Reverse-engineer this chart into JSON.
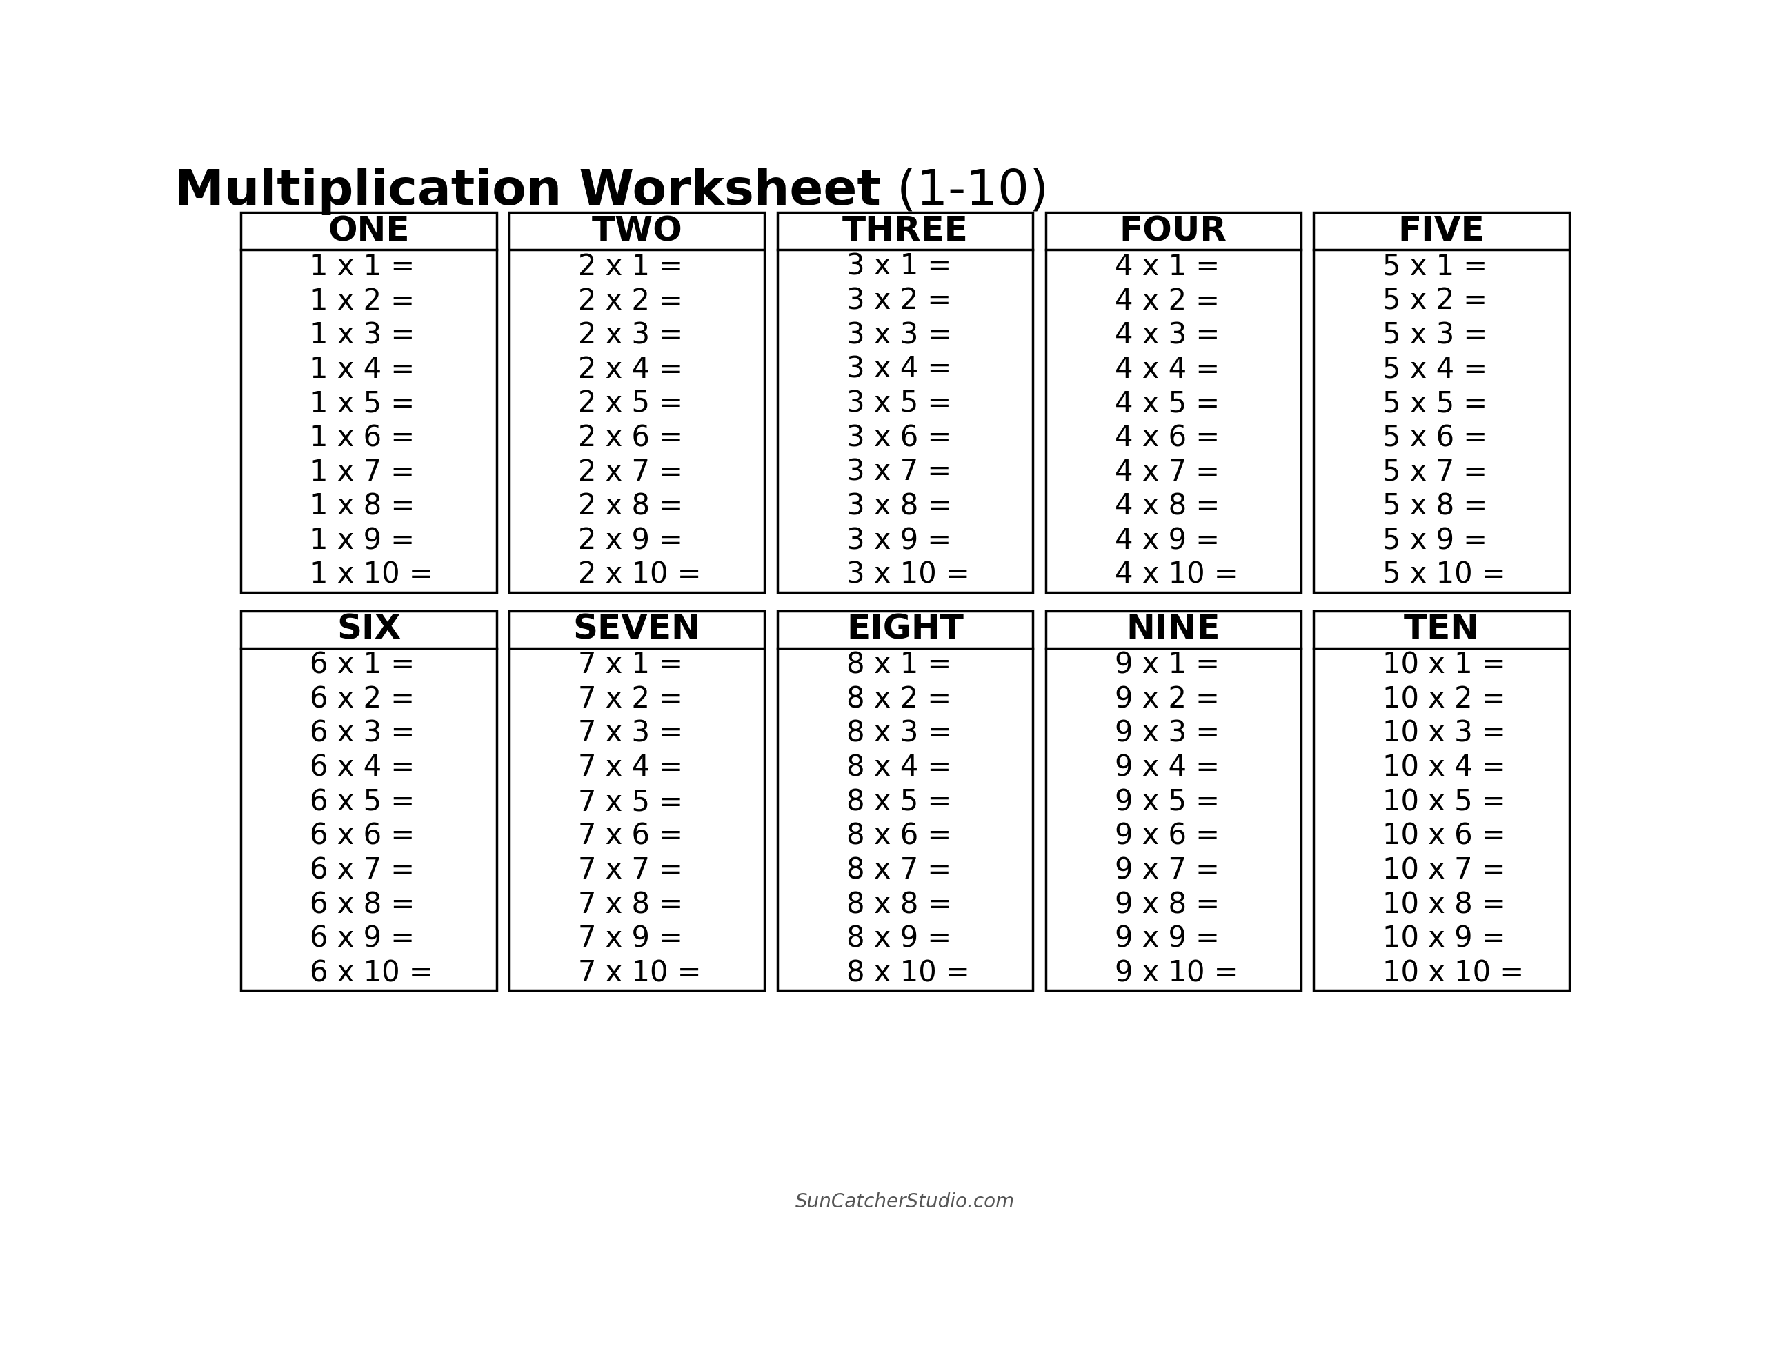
{
  "title_bold": "Multiplication Worksheet",
  "title_normal": " (1-10)",
  "watermark": "SunCatcherStudio.com",
  "background_color": "#ffffff",
  "border_color": "#000000",
  "tables": [
    {
      "number": 1,
      "name": "ONE"
    },
    {
      "number": 2,
      "name": "TWO"
    },
    {
      "number": 3,
      "name": "THREE"
    },
    {
      "number": 4,
      "name": "FOUR"
    },
    {
      "number": 5,
      "name": "FIVE"
    },
    {
      "number": 6,
      "name": "SIX"
    },
    {
      "number": 7,
      "name": "SEVEN"
    },
    {
      "number": 8,
      "name": "EIGHT"
    },
    {
      "number": 9,
      "name": "NINE"
    },
    {
      "number": 10,
      "name": "TEN"
    }
  ],
  "rows_per_table": 10,
  "cols": 5,
  "fig_width": 25.6,
  "fig_height": 19.78,
  "title_fontsize": 52,
  "header_fontsize": 36,
  "cell_fontsize": 30,
  "watermark_fontsize": 20
}
